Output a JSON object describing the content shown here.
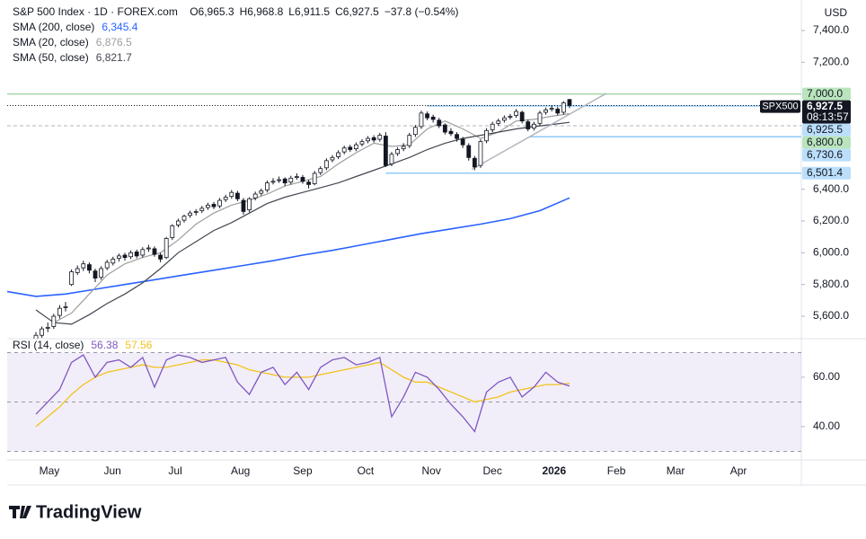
{
  "header": {
    "title": "S&P 500 Index · 1D · FOREX.com",
    "ohlc": [
      "O6,965.3",
      "H6,968.8",
      "L6,911.5",
      "C6,927.5",
      "−37.8 (−0.54%)"
    ],
    "currency": "USD"
  },
  "chart_data": {
    "type": "candlestick",
    "xlim": [
      -4.85,
      129.1
    ],
    "ylim": [
      5458.6,
      7592.4
    ],
    "yticks": [
      {
        "value": 7400,
        "label": "7,400.0"
      },
      {
        "value": 7200,
        "label": "7,200.0"
      },
      {
        "value": 6400,
        "label": "6,400.0"
      },
      {
        "value": 6200,
        "label": "6,200.0"
      },
      {
        "value": 6000,
        "label": "6,000.0"
      },
      {
        "value": 5800,
        "label": "5,800.0"
      },
      {
        "value": 5600,
        "label": "5,600.0"
      }
    ],
    "xticks": [
      {
        "value": 2.27,
        "label": "May"
      },
      {
        "value": 12.9,
        "label": "Jun"
      },
      {
        "value": 23.5,
        "label": "Jul"
      },
      {
        "value": 34.5,
        "label": "Aug"
      },
      {
        "value": 45,
        "label": "Sep"
      },
      {
        "value": 55.6,
        "label": "Oct"
      },
      {
        "value": 66.7,
        "label": "Nov"
      },
      {
        "value": 77,
        "label": "Dec"
      },
      {
        "value": 87.4,
        "label": "2026"
      },
      {
        "value": 97.9,
        "label": "Feb"
      },
      {
        "value": 107.9,
        "label": "Mar"
      },
      {
        "value": 118.5,
        "label": "Apr"
      }
    ],
    "up_color": "#ffffff",
    "down_color": "#131722",
    "border_color": "#131722",
    "ohlc": [
      [
        5450,
        5500,
        5430,
        5480
      ],
      [
        5480,
        5535,
        5465,
        5520
      ],
      [
        5525,
        5560,
        5500,
        5530
      ],
      [
        5535,
        5615,
        5520,
        5600
      ],
      [
        5605,
        5670,
        5585,
        5650
      ],
      [
        5655,
        5690,
        5630,
        5660
      ],
      [
        5800,
        5895,
        5790,
        5880
      ],
      [
        5875,
        5920,
        5860,
        5900
      ],
      [
        5905,
        5950,
        5885,
        5930
      ],
      [
        5925,
        5940,
        5870,
        5890
      ],
      [
        5885,
        5900,
        5815,
        5840
      ],
      [
        5845,
        5915,
        5830,
        5900
      ],
      [
        5905,
        5955,
        5890,
        5940
      ],
      [
        5935,
        5975,
        5920,
        5960
      ],
      [
        5965,
        5995,
        5945,
        5980
      ],
      [
        5985,
        6000,
        5950,
        5970
      ],
      [
        5975,
        6015,
        5960,
        6000
      ],
      [
        6005,
        6020,
        5965,
        5980
      ],
      [
        5985,
        6035,
        5970,
        6020
      ],
      [
        6025,
        6050,
        6005,
        6030
      ],
      [
        6025,
        6040,
        5975,
        5990
      ],
      [
        5985,
        6000,
        5940,
        5960
      ],
      [
        5970,
        6100,
        5960,
        6090
      ],
      [
        6095,
        6180,
        6080,
        6170
      ],
      [
        6175,
        6215,
        6160,
        6200
      ],
      [
        6205,
        6240,
        6190,
        6230
      ],
      [
        6235,
        6265,
        6220,
        6250
      ],
      [
        6255,
        6275,
        6235,
        6260
      ],
      [
        6265,
        6295,
        6250,
        6280
      ],
      [
        6285,
        6315,
        6270,
        6300
      ],
      [
        6305,
        6320,
        6275,
        6290
      ],
      [
        6295,
        6345,
        6280,
        6330
      ],
      [
        6335,
        6365,
        6320,
        6350
      ],
      [
        6355,
        6395,
        6340,
        6380
      ],
      [
        6375,
        6390,
        6325,
        6340
      ],
      [
        6330,
        6345,
        6240,
        6260
      ],
      [
        6270,
        6350,
        6255,
        6340
      ],
      [
        6345,
        6385,
        6330,
        6370
      ],
      [
        6375,
        6405,
        6360,
        6390
      ],
      [
        6395,
        6455,
        6380,
        6440
      ],
      [
        6445,
        6470,
        6430,
        6450
      ],
      [
        6455,
        6480,
        6440,
        6460
      ],
      [
        6465,
        6475,
        6420,
        6440
      ],
      [
        6445,
        6485,
        6430,
        6470
      ],
      [
        6475,
        6500,
        6460,
        6480
      ],
      [
        6475,
        6490,
        6435,
        6450
      ],
      [
        6445,
        6460,
        6405,
        6430
      ],
      [
        6435,
        6515,
        6425,
        6500
      ],
      [
        6505,
        6545,
        6490,
        6530
      ],
      [
        6535,
        6595,
        6520,
        6580
      ],
      [
        6585,
        6615,
        6570,
        6600
      ],
      [
        6605,
        6645,
        6590,
        6630
      ],
      [
        6635,
        6675,
        6620,
        6660
      ],
      [
        6665,
        6680,
        6635,
        6650
      ],
      [
        6655,
        6695,
        6640,
        6680
      ],
      [
        6685,
        6715,
        6670,
        6700
      ],
      [
        6705,
        6735,
        6690,
        6720
      ],
      [
        6725,
        6740,
        6695,
        6710
      ],
      [
        6715,
        6755,
        6700,
        6740
      ],
      [
        6735,
        6760,
        6540,
        6550
      ],
      [
        6560,
        6635,
        6545,
        6620
      ],
      [
        6625,
        6665,
        6610,
        6650
      ],
      [
        6655,
        6690,
        6640,
        6670
      ],
      [
        6675,
        6755,
        6660,
        6740
      ],
      [
        6745,
        6805,
        6730,
        6790
      ],
      [
        6795,
        6895,
        6780,
        6880
      ],
      [
        6875,
        6890,
        6835,
        6850
      ],
      [
        6855,
        6870,
        6820,
        6840
      ],
      [
        6835,
        6850,
        6785,
        6800
      ],
      [
        6805,
        6815,
        6745,
        6760
      ],
      [
        6765,
        6785,
        6735,
        6750
      ],
      [
        6745,
        6760,
        6700,
        6720
      ],
      [
        6715,
        6730,
        6660,
        6680
      ],
      [
        6675,
        6690,
        6580,
        6600
      ],
      [
        6595,
        6610,
        6520,
        6540
      ],
      [
        6550,
        6715,
        6535,
        6700
      ],
      [
        6705,
        6785,
        6690,
        6770
      ],
      [
        6775,
        6825,
        6760,
        6810
      ],
      [
        6815,
        6845,
        6800,
        6830
      ],
      [
        6835,
        6865,
        6820,
        6850
      ],
      [
        6855,
        6875,
        6840,
        6860
      ],
      [
        6865,
        6905,
        6850,
        6890
      ],
      [
        6885,
        6895,
        6815,
        6830
      ],
      [
        6825,
        6840,
        6765,
        6780
      ],
      [
        6785,
        6825,
        6770,
        6810
      ],
      [
        6815,
        6895,
        6800,
        6880
      ],
      [
        6885,
        6915,
        6870,
        6900
      ],
      [
        6905,
        6930,
        6890,
        6910
      ],
      [
        6905,
        6920,
        6865,
        6880
      ],
      [
        6885,
        6955,
        6870,
        6944
      ],
      [
        6965.3,
        6968.8,
        6911.5,
        6927.5
      ]
    ],
    "series": [
      {
        "name": "SMA (200, close)",
        "value_label": "6,345.4",
        "color": "#2962ff",
        "x": [
          -4.85,
          0,
          5,
          10,
          15,
          20,
          25,
          30,
          35,
          40,
          45,
          50,
          55,
          60,
          65,
          70,
          75,
          80,
          85,
          90
        ],
        "values": [
          5755,
          5725,
          5740,
          5770,
          5800,
          5830,
          5860,
          5890,
          5920,
          5950,
          5985,
          6015,
          6050,
          6085,
          6120,
          6150,
          6180,
          6215,
          6265,
          6345.4
        ]
      },
      {
        "name": "SMA (20, close)",
        "value_label": "6,876.5",
        "color": "#9e9e9e",
        "x": [
          3,
          6,
          9,
          12,
          15,
          18,
          21,
          24,
          27,
          30,
          33,
          36,
          39,
          42,
          45,
          48,
          51,
          54,
          57,
          60,
          63,
          66,
          69,
          72,
          75,
          78,
          81,
          84,
          87,
          90
        ],
        "values": [
          5560,
          5620,
          5740,
          5860,
          5930,
          5970,
          6000,
          6080,
          6180,
          6250,
          6300,
          6330,
          6370,
          6420,
          6450,
          6480,
          6560,
          6630,
          6690,
          6670,
          6680,
          6780,
          6830,
          6780,
          6720,
          6760,
          6830,
          6840,
          6860,
          6876.5
        ]
      },
      {
        "name": "SMA (50, close)",
        "value_label": "6,821.7",
        "color": "#434651",
        "x": [
          0,
          3,
          6,
          9,
          12,
          15,
          18,
          21,
          24,
          27,
          30,
          33,
          36,
          39,
          42,
          45,
          48,
          51,
          54,
          57,
          60,
          63,
          66,
          69,
          72,
          75,
          78,
          81,
          84,
          87,
          90
        ],
        "values": [
          5640,
          5560,
          5550,
          5610,
          5680,
          5740,
          5810,
          5900,
          6000,
          6070,
          6140,
          6190,
          6250,
          6310,
          6350,
          6380,
          6410,
          6440,
          6480,
          6520,
          6560,
          6600,
          6650,
          6690,
          6720,
          6740,
          6760,
          6780,
          6795,
          6808,
          6821.7
        ]
      }
    ],
    "trendline": {
      "color": "#b2b5be",
      "x": [
        73.5,
        96.2
      ],
      "values": [
        6525,
        7004
      ]
    },
    "levels": [
      {
        "value": 7000,
        "label": "7,000.0",
        "color": "#b9e4bc",
        "line_color": "#a5d6a7"
      },
      {
        "value": 6925.5,
        "label": "6,925.5",
        "color": "#bbdefb",
        "line_color": "#90caf9",
        "from": 65.9
      },
      {
        "value": 6800,
        "label": "6,800.0",
        "color": "#b9e4bc",
        "line_color": "#b2b5be",
        "dashed": true
      },
      {
        "value": 6730.6,
        "label": "6,730.6",
        "color": "#bbdefb",
        "line_color": "#90caf9",
        "from": 83.3
      },
      {
        "value": 6501.4,
        "label": "6,501.4",
        "color": "#bbdefb",
        "line_color": "#90caf9",
        "from": 59
      }
    ],
    "last_price": {
      "value": 6927.5,
      "label": "6,927.5",
      "symbol": "SPX500",
      "countdown": "08:13:57"
    }
  },
  "rsi": {
    "type": "line",
    "title": "RSI (14, close)",
    "ylim": [
      26.5,
      75.6
    ],
    "yticks": [
      {
        "value": 60,
        "label": "60.00"
      },
      {
        "value": 40,
        "label": "40.00"
      }
    ],
    "bands": [
      70,
      50,
      30
    ],
    "x": [
      0,
      2,
      4,
      6,
      8,
      10,
      12,
      14,
      16,
      18,
      20,
      22,
      24,
      26,
      28,
      30,
      32,
      34,
      36,
      38,
      40,
      42,
      44,
      46,
      48,
      50,
      52,
      54,
      56,
      58,
      60,
      62,
      64,
      66,
      68,
      70,
      72,
      74,
      76,
      78,
      80,
      82,
      84,
      86,
      88,
      90
    ],
    "series": [
      {
        "value_label": "56.38",
        "color": "#7e57c2",
        "values": [
          45,
          50,
          55,
          66,
          69,
          60,
          66,
          67,
          64,
          68,
          56,
          67,
          69,
          68,
          66,
          67,
          68,
          58,
          53,
          62,
          64,
          57,
          62,
          55,
          64,
          67,
          68,
          65,
          66,
          68,
          44,
          52,
          62,
          60,
          55,
          49,
          44,
          38,
          54,
          58,
          60,
          52,
          56,
          62,
          58,
          56.38
        ]
      },
      {
        "value_label": "57.56",
        "color": "#f2c21b",
        "values": [
          40,
          44,
          48,
          53,
          57,
          60,
          62,
          63,
          64,
          65,
          64,
          64,
          65,
          66,
          67,
          67,
          66,
          65,
          63,
          62,
          61,
          60,
          60,
          60,
          61,
          62,
          63,
          64,
          65,
          66,
          63,
          60,
          58,
          58,
          56,
          54,
          52,
          50,
          51,
          52,
          54,
          55,
          56,
          57,
          57,
          57.56
        ]
      }
    ]
  },
  "footer": {
    "brand": "TradingView"
  }
}
